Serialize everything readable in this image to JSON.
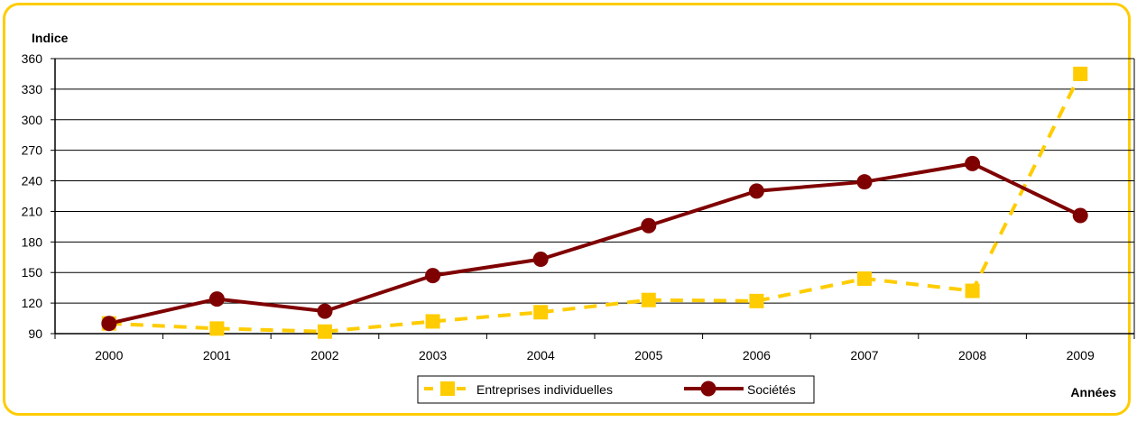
{
  "chart_data": {
    "type": "line",
    "ylabel": "Indice",
    "xlabel": "Années",
    "ylim": [
      90,
      360
    ],
    "yticks": [
      90,
      120,
      150,
      180,
      210,
      240,
      270,
      300,
      330,
      360
    ],
    "categories": [
      "2000",
      "2001",
      "2002",
      "2003",
      "2004",
      "2005",
      "2006",
      "2007",
      "2008",
      "2009"
    ],
    "grid": true,
    "legend_position": "bottom",
    "series": [
      {
        "name": "Entreprises individuelles",
        "color": "#FFCC00",
        "style": "dashed",
        "marker": "square",
        "values": [
          100,
          95,
          92,
          102,
          111,
          123,
          122,
          144,
          132,
          345
        ]
      },
      {
        "name": "Sociétés",
        "color": "#7F0000",
        "style": "solid",
        "marker": "circle",
        "values": [
          100,
          124,
          112,
          147,
          163,
          196,
          230,
          239,
          257,
          206
        ]
      }
    ]
  }
}
